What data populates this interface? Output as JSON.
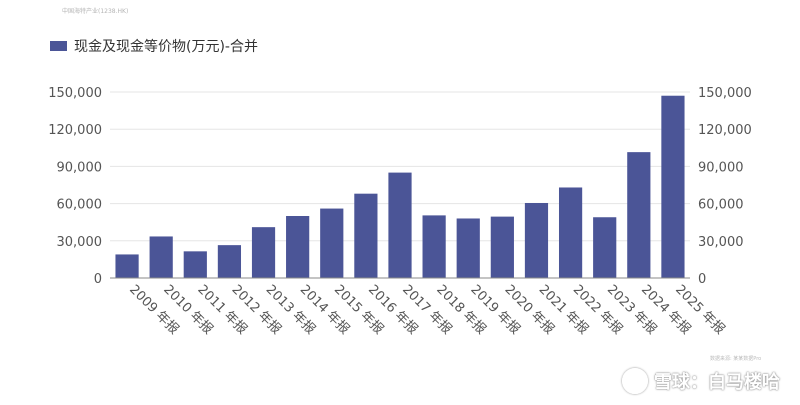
{
  "source_note": "中国海特产业(1238.HK)",
  "footer_note": "数据来源: 某某数据Pro",
  "watermark": {
    "brand": "雪球",
    "separator": "：",
    "author": "白马楼哈"
  },
  "colors": {
    "bar": "#4b5597",
    "grid": "#e5e5e5",
    "axis": "#8a8a8a"
  },
  "chart_data": {
    "type": "bar",
    "title": "",
    "xlabel": "",
    "ylabel": "",
    "ylim": [
      0,
      150000
    ],
    "yticks": [
      "0",
      "30,000",
      "60,000",
      "90,000",
      "120,000",
      "150,000"
    ],
    "ytick_values": [
      0,
      30000,
      60000,
      90000,
      120000,
      150000
    ],
    "y_axis_sides": [
      "left",
      "right"
    ],
    "grid": true,
    "legend": "top-left",
    "categories": [
      "2009 年报",
      "2010 年报",
      "2011 年报",
      "2012 年报",
      "2013 年报",
      "2014 年报",
      "2015 年报",
      "2016 年报",
      "2017 年报",
      "2018 年报",
      "2019 年报",
      "2020 年报",
      "2021 年报",
      "2022 年报",
      "2023 年报",
      "2024 年报",
      "2025 年报"
    ],
    "series": [
      {
        "name": "现金及现金等价物(万元)-合并",
        "values": [
          19000,
          33500,
          21500,
          26500,
          41000,
          50000,
          56000,
          68000,
          85000,
          50500,
          48000,
          49500,
          60500,
          73000,
          49000,
          101500,
          147000
        ]
      }
    ]
  }
}
